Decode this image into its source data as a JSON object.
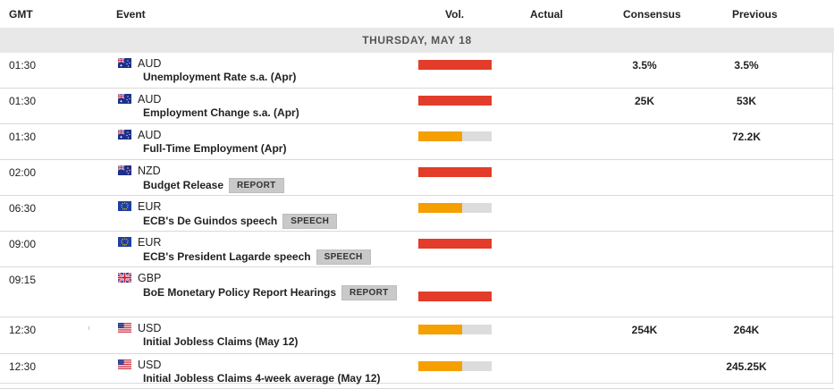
{
  "header": {
    "gmt": "GMT",
    "event": "Event",
    "vol": "Vol.",
    "actual": "Actual",
    "consensus": "Consensus",
    "previous": "Previous"
  },
  "day": "THURSDAY, MAY 18",
  "colors": {
    "high": "#e33c2a",
    "medium": "#f5a000",
    "bar_bg": "#dcdcdc"
  },
  "rows": [
    {
      "time": "01:30",
      "flag": "australia-flag-icon",
      "currency": "AUD",
      "event": "Unemployment Rate s.a. (Apr)",
      "tag": "",
      "volatility": "high",
      "vol_fraction": 1.0,
      "actual": "",
      "consensus": "3.5%",
      "previous": "3.5%"
    },
    {
      "time": "01:30",
      "flag": "australia-flag-icon",
      "currency": "AUD",
      "event": "Employment Change s.a. (Apr)",
      "tag": "",
      "volatility": "high",
      "vol_fraction": 1.0,
      "actual": "",
      "consensus": "25K",
      "previous": "53K"
    },
    {
      "time": "01:30",
      "flag": "australia-flag-icon",
      "currency": "AUD",
      "event": "Full-Time Employment (Apr)",
      "tag": "",
      "volatility": "medium",
      "vol_fraction": 0.6,
      "actual": "",
      "consensus": "",
      "previous": "72.2K"
    },
    {
      "time": "02:00",
      "flag": "new-zealand-flag-icon",
      "currency": "NZD",
      "event": "Budget Release",
      "tag": "REPORT",
      "volatility": "high",
      "vol_fraction": 1.0,
      "actual": "",
      "consensus": "",
      "previous": ""
    },
    {
      "time": "06:30",
      "flag": "eu-flag-icon",
      "currency": "EUR",
      "event": "ECB's De Guindos speech",
      "tag": "SPEECH",
      "volatility": "medium",
      "vol_fraction": 0.6,
      "actual": "",
      "consensus": "",
      "previous": ""
    },
    {
      "time": "09:00",
      "flag": "eu-flag-icon",
      "currency": "EUR",
      "event": "ECB's President Lagarde speech",
      "tag": "SPEECH",
      "volatility": "high",
      "vol_fraction": 1.0,
      "actual": "",
      "consensus": "",
      "previous": ""
    },
    {
      "time": "09:15",
      "flag": "uk-flag-icon",
      "currency": "GBP",
      "event": "BoE Monetary Policy Report Hearings",
      "tag": "REPORT",
      "volatility": "high",
      "vol_fraction": 1.0,
      "actual": "",
      "consensus": "",
      "previous": ""
    },
    {
      "time": "12:30",
      "flag": "us-flag-icon",
      "currency": "USD",
      "event": "Initial Jobless Claims (May 12)",
      "tag": "",
      "volatility": "medium",
      "vol_fraction": 0.6,
      "actual": "",
      "consensus": "254K",
      "previous": "264K"
    },
    {
      "time": "12:30",
      "flag": "us-flag-icon",
      "currency": "USD",
      "event": "Initial Jobless Claims 4-week average (May 12)",
      "tag": "",
      "volatility": "medium",
      "vol_fraction": 0.6,
      "actual": "",
      "consensus": "",
      "previous": "245.25K"
    }
  ]
}
